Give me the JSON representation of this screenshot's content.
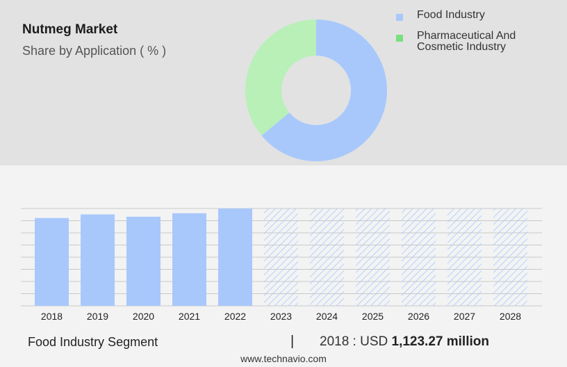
{
  "title": "Nutmeg Market",
  "subtitle": "Share by Application ( % )",
  "colors": {
    "food": "#a8c8fc",
    "pharma_swatch": "#78e07e",
    "pharma_donut": "#b8f0b8",
    "grid": "#c8c8c8",
    "hatch": "#a8c8fc"
  },
  "chart_data": [
    {
      "type": "pie",
      "donut": true,
      "legend_position": "right",
      "slices": [
        {
          "label": "Food Industry",
          "value": 64
        },
        {
          "label": "Pharmaceutical And Cosmetic Industry",
          "value": 36
        }
      ]
    },
    {
      "type": "bar",
      "categories": [
        "2018",
        "2019",
        "2020",
        "2021",
        "2022",
        "2023",
        "2024",
        "2025",
        "2026",
        "2027",
        "2028"
      ],
      "values": [
        1123.27,
        1170,
        1140,
        1185,
        1245,
        null,
        null,
        null,
        null,
        null,
        null
      ],
      "forecast_from": "2023",
      "ylim": [
        0,
        1245
      ],
      "grid": true
    }
  ],
  "legend": [
    {
      "label_lines": [
        "Food Industry"
      ]
    },
    {
      "label_lines": [
        "Pharmaceutical And",
        "Cosmetic Industry"
      ]
    }
  ],
  "footer": {
    "segment": "Food Industry Segment",
    "separator": "|",
    "value_prefix": "2018 : USD ",
    "value_bold": "1,123.27 million",
    "url": "www.technavio.com"
  }
}
